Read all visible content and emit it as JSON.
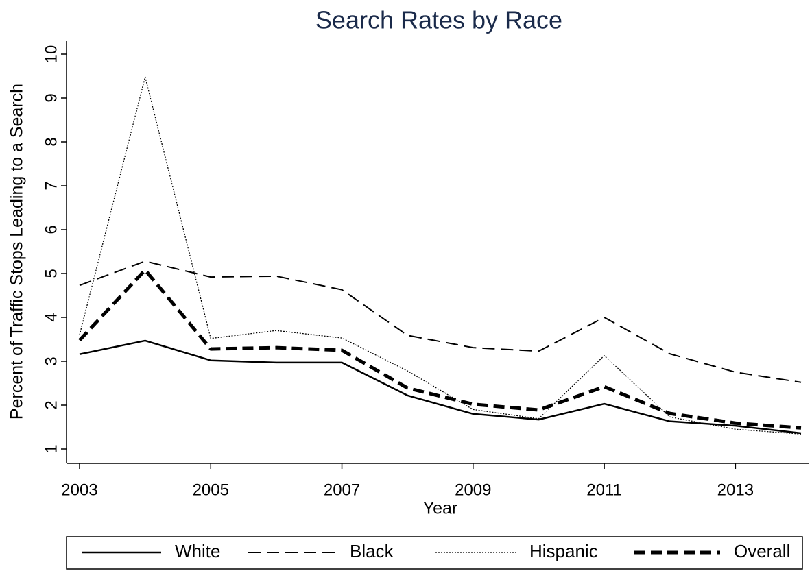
{
  "chart_data": {
    "type": "line",
    "title": "Search Rates by Race",
    "x_label": "Year",
    "y_label": "Percent of Traffic Stops Leading to a Search",
    "x": [
      2003,
      2004,
      2005,
      2006,
      2007,
      2008,
      2009,
      2010,
      2011,
      2012,
      2013,
      2014
    ],
    "series": [
      {
        "name": "White",
        "color": "#000000",
        "style": "solid",
        "values": [
          3.16,
          3.47,
          3.02,
          2.97,
          2.97,
          2.22,
          1.8,
          1.67,
          2.03,
          1.63,
          1.53,
          1.36
        ]
      },
      {
        "name": "Black",
        "color": "#000000",
        "style": "dashed",
        "values": [
          4.73,
          5.28,
          4.92,
          4.94,
          4.63,
          3.59,
          3.31,
          3.23,
          4.0,
          3.17,
          2.75,
          2.52
        ]
      },
      {
        "name": "Hispanic",
        "color": "#000000",
        "style": "dotted",
        "values": [
          3.6,
          9.48,
          3.52,
          3.7,
          3.53,
          2.78,
          1.9,
          1.69,
          3.13,
          1.73,
          1.45,
          1.34
        ]
      },
      {
        "name": "Overall",
        "color": "#000000",
        "style": "thick-dashed",
        "values": [
          3.48,
          5.08,
          3.28,
          3.31,
          3.25,
          2.39,
          2.02,
          1.89,
          2.42,
          1.81,
          1.59,
          1.48
        ]
      }
    ],
    "xlim": [
      2003,
      2014
    ],
    "xticks": [
      2003,
      2005,
      2007,
      2009,
      2011,
      2013
    ],
    "ylim": [
      1,
      10
    ],
    "yticks": [
      1,
      2,
      3,
      4,
      5,
      6,
      7,
      8,
      9,
      10
    ],
    "grid": false,
    "legend": "bottom"
  }
}
